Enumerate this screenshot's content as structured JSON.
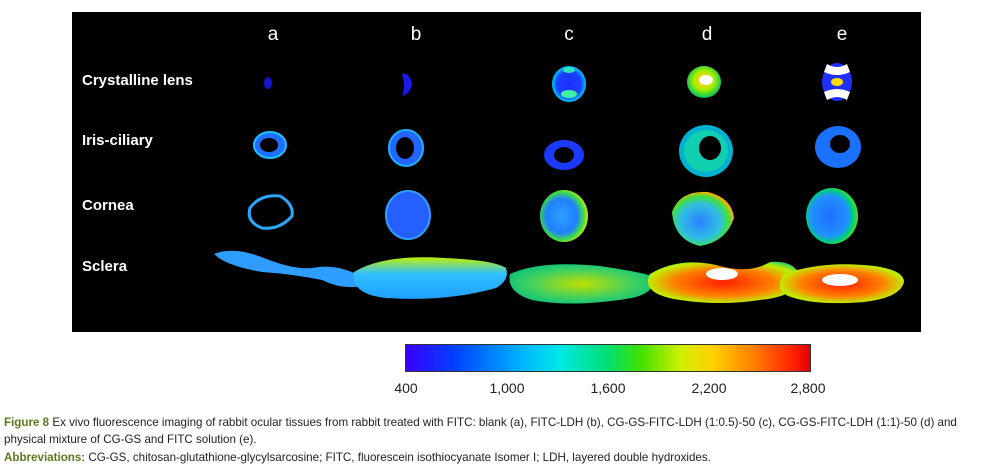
{
  "columns": [
    "a",
    "b",
    "c",
    "d",
    "e"
  ],
  "rows": [
    "Crystalline lens",
    "Iris-ciliary",
    "Cornea",
    "Sclera"
  ],
  "colorbar": {
    "ticks": [
      "400",
      "1,000",
      "1,600",
      "2,200",
      "2,800"
    ],
    "colors": [
      "#3a00ff",
      "#0040ff",
      "#00b0ff",
      "#00e8e8",
      "#00e070",
      "#d0f000",
      "#ffd000",
      "#ff8000",
      "#e00000"
    ]
  },
  "caption": {
    "lead": "Figure 8",
    "text": " Ex vivo fluorescence imaging of rabbit ocular tissues from rabbit treated with FITC: blank (a), FITC-LDH (b), CG-GS-FITC-LDH (1:0.5)-50 (c), CG-GS-FITC-LDH (1:1)-50 (d) and physical mixture of CG-GS and FITC solution (e)."
  },
  "abbreviations": {
    "lead": "Abbreviations:",
    "text": " CG-GS, chitosan-glutathione-glycylsarcosine; FITC, fluorescein isothiocyanate Isomer I; LDH, layered double hydroxides."
  }
}
